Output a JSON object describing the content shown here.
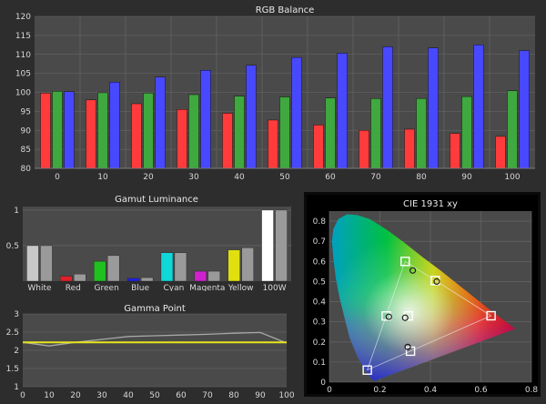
{
  "chart_data": [
    {
      "id": "rgb-balance",
      "type": "bar",
      "title": "RGB Balance",
      "categories": [
        "0",
        "10",
        "20",
        "30",
        "40",
        "50",
        "60",
        "70",
        "80",
        "90",
        "100"
      ],
      "ylim": [
        80,
        120
      ],
      "yticks": [
        "80",
        "85",
        "90",
        "95",
        "100",
        "105",
        "110",
        "115",
        "120"
      ],
      "grid": true,
      "series": [
        {
          "color": "#ff3b3b",
          "values": [
            99.8,
            98.0,
            97.0,
            95.5,
            94.5,
            92.7,
            91.4,
            90.0,
            90.3,
            89.2,
            88.4
          ]
        },
        {
          "color": "#3fa83f",
          "values": [
            100.3,
            99.9,
            99.8,
            99.4,
            99.0,
            98.8,
            98.5,
            98.4,
            98.4,
            98.9,
            100.4
          ]
        },
        {
          "color": "#4848ff",
          "values": [
            100.2,
            102.7,
            104.0,
            105.8,
            107.1,
            109.2,
            110.3,
            112.0,
            111.7,
            112.5,
            111.0
          ]
        }
      ]
    },
    {
      "id": "gamut-luminance",
      "type": "bar",
      "title": "Gamut Luminance",
      "categories": [
        "White",
        "Red",
        "Green",
        "Blue",
        "Cyan",
        "Magenta",
        "Yellow",
        "100W"
      ],
      "ylim": [
        0,
        1.05
      ],
      "yticks": [
        "0.5",
        "1"
      ],
      "series": [
        {
          "values": [
            0.5,
            0.07,
            0.28,
            0.04,
            0.4,
            0.14,
            0.44,
            1.0
          ],
          "colors": [
            "#c8c8c8",
            "#e0202a",
            "#20c020",
            "#2020e0",
            "#10d8d8",
            "#d020d0",
            "#e0e010",
            "#ffffff"
          ]
        },
        {
          "values": [
            0.5,
            0.1,
            0.36,
            0.05,
            0.4,
            0.14,
            0.47,
            1.0
          ],
          "colors": [
            "#9a9a9a"
          ]
        }
      ]
    },
    {
      "id": "gamma-point",
      "type": "line",
      "title": "Gamma Point",
      "x": [
        0,
        10,
        20,
        30,
        40,
        50,
        60,
        70,
        80,
        90,
        100
      ],
      "xticks": [
        "0",
        "10",
        "20",
        "30",
        "40",
        "50",
        "60",
        "70",
        "80",
        "90",
        "100"
      ],
      "ylim": [
        1,
        3
      ],
      "yticks": [
        "1",
        "1.5",
        "2",
        "2.5",
        "3"
      ],
      "series": [
        {
          "color": "#a8a8a8",
          "values": [
            2.22,
            2.12,
            2.22,
            2.3,
            2.38,
            2.4,
            2.42,
            2.44,
            2.47,
            2.49,
            2.2
          ]
        },
        {
          "color": "#e6e61a",
          "values": [
            2.22,
            2.22,
            2.22,
            2.22,
            2.22,
            2.22,
            2.22,
            2.22,
            2.22,
            2.22,
            2.22
          ]
        }
      ]
    },
    {
      "id": "cie-1931",
      "type": "scatter",
      "title": "CIE 1931 xy",
      "xlim": [
        0,
        0.8
      ],
      "ylim": [
        0,
        0.85
      ],
      "xticks": [
        "0",
        "0.2",
        "0.4",
        "0.6",
        "0.8"
      ],
      "yticks": [
        "0",
        "0.1",
        "0.2",
        "0.3",
        "0.4",
        "0.5",
        "0.6",
        "0.7",
        "0.8"
      ],
      "targets": [
        [
          0.64,
          0.33
        ],
        [
          0.3,
          0.6
        ],
        [
          0.15,
          0.06
        ],
        [
          0.225,
          0.329
        ],
        [
          0.321,
          0.154
        ],
        [
          0.419,
          0.505
        ],
        [
          0.3127,
          0.329
        ]
      ],
      "measured": [
        [
          0.33,
          0.555
        ],
        [
          0.235,
          0.325
        ],
        [
          0.425,
          0.5
        ],
        [
          0.31,
          0.175
        ],
        [
          0.3,
          0.32
        ]
      ]
    }
  ]
}
